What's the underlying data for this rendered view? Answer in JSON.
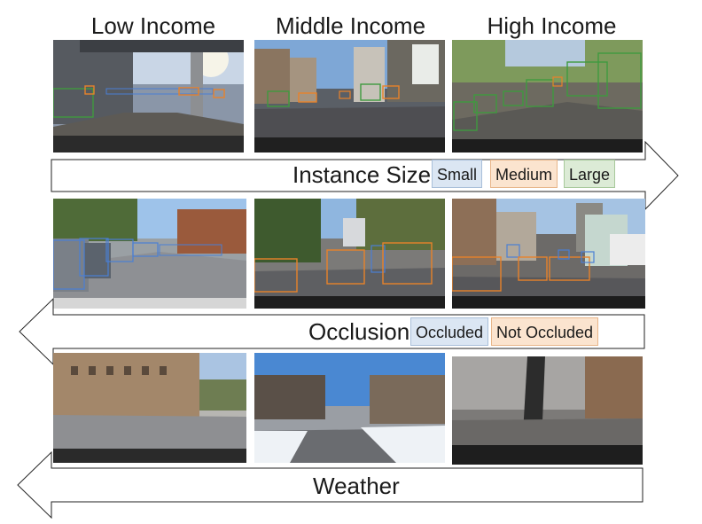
{
  "columns": {
    "low": "Low Income",
    "middle": "Middle Income",
    "high": "High Income"
  },
  "rows": {
    "instance_size": {
      "label": "Instance Size",
      "legend": {
        "small": "Small",
        "medium": "Medium",
        "large": "Large"
      }
    },
    "occlusion": {
      "label": "Occlusion",
      "legend": {
        "occluded": "Occluded",
        "not_occluded": "Not Occluded"
      }
    },
    "weather": {
      "label": "Weather"
    }
  },
  "colors": {
    "small": "#4a7fd4",
    "medium": "#e8822a",
    "large": "#3f9a3f",
    "occluded": "#4a7fd4",
    "not_occluded": "#e8822a"
  }
}
